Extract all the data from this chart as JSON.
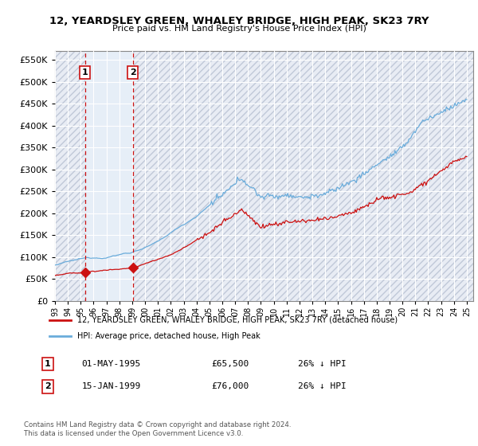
{
  "title1": "12, YEARDSLEY GREEN, WHALEY BRIDGE, HIGH PEAK, SK23 7RY",
  "title2": "Price paid vs. HM Land Registry's House Price Index (HPI)",
  "yticks": [
    0,
    50000,
    100000,
    150000,
    200000,
    250000,
    300000,
    350000,
    400000,
    450000,
    500000,
    550000
  ],
  "ytick_labels": [
    "£0",
    "£50K",
    "£100K",
    "£150K",
    "£200K",
    "£250K",
    "£300K",
    "£350K",
    "£400K",
    "£450K",
    "£500K",
    "£550K"
  ],
  "ylim": [
    0,
    570000
  ],
  "xlim_start": 1993.0,
  "xlim_end": 2025.5,
  "sale1_x": 1995.33,
  "sale1_y": 65500,
  "sale1_label": "1",
  "sale2_x": 1999.04,
  "sale2_y": 76000,
  "sale2_label": "2",
  "hpi_color": "#6aacdb",
  "price_color": "#cc1111",
  "sale_dot_color": "#cc1111",
  "vline_color": "#cc1111",
  "legend_label1": "12, YEARDSLEY GREEN, WHALEY BRIDGE, HIGH PEAK, SK23 7RY (detached house)",
  "legend_label2": "HPI: Average price, detached house, High Peak",
  "table_row1": [
    "1",
    "01-MAY-1995",
    "£65,500",
    "26% ↓ HPI"
  ],
  "table_row2": [
    "2",
    "15-JAN-1999",
    "£76,000",
    "26% ↓ HPI"
  ],
  "footnote": "Contains HM Land Registry data © Crown copyright and database right 2024.\nThis data is licensed under the Open Government Licence v3.0.",
  "xtick_years": [
    1993,
    1994,
    1995,
    1996,
    1997,
    1998,
    1999,
    2000,
    2001,
    2002,
    2003,
    2004,
    2005,
    2006,
    2007,
    2008,
    2009,
    2010,
    2011,
    2012,
    2013,
    2014,
    2015,
    2016,
    2017,
    2018,
    2019,
    2020,
    2021,
    2022,
    2023,
    2024,
    2025
  ]
}
